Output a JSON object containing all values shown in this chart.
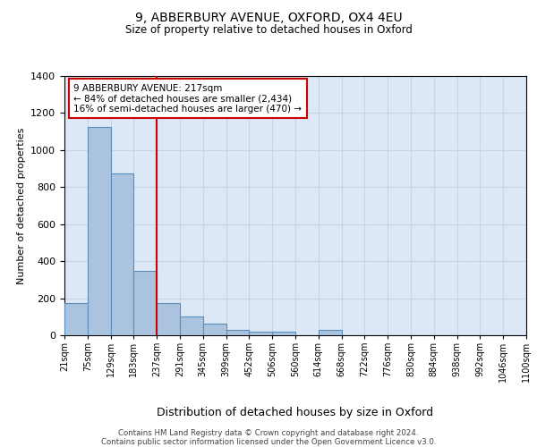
{
  "title_line1": "9, ABBERBURY AVENUE, OXFORD, OX4 4EU",
  "title_line2": "Size of property relative to detached houses in Oxford",
  "xlabel": "Distribution of detached houses by size in Oxford",
  "ylabel": "Number of detached properties",
  "footnote": "Contains HM Land Registry data © Crown copyright and database right 2024.\nContains public sector information licensed under the Open Government Licence v3.0.",
  "bin_labels": [
    "21sqm",
    "75sqm",
    "129sqm",
    "183sqm",
    "237sqm",
    "291sqm",
    "345sqm",
    "399sqm",
    "452sqm",
    "506sqm",
    "560sqm",
    "614sqm",
    "668sqm",
    "722sqm",
    "776sqm",
    "830sqm",
    "884sqm",
    "938sqm",
    "992sqm",
    "1046sqm",
    "1100sqm"
  ],
  "bar_values": [
    175,
    1125,
    875,
    350,
    175,
    100,
    65,
    30,
    20,
    20,
    0,
    30,
    0,
    0,
    0,
    0,
    0,
    0,
    0,
    0
  ],
  "bar_color": "#aac4df",
  "bar_edge_color": "#5b8db8",
  "grid_color": "#c5d5e5",
  "bg_color": "#dce8f5",
  "annotation_line1": "9 ABBERBURY AVENUE: 217sqm",
  "annotation_line2": "← 84% of detached houses are smaller (2,434)",
  "annotation_line3": "16% of semi-detached houses are larger (470) →",
  "annotation_box_color": "#cc0000",
  "marker_line_color": "#cc0000",
  "ylim": [
    0,
    1400
  ],
  "yticks": [
    0,
    200,
    400,
    600,
    800,
    1000,
    1200,
    1400
  ]
}
